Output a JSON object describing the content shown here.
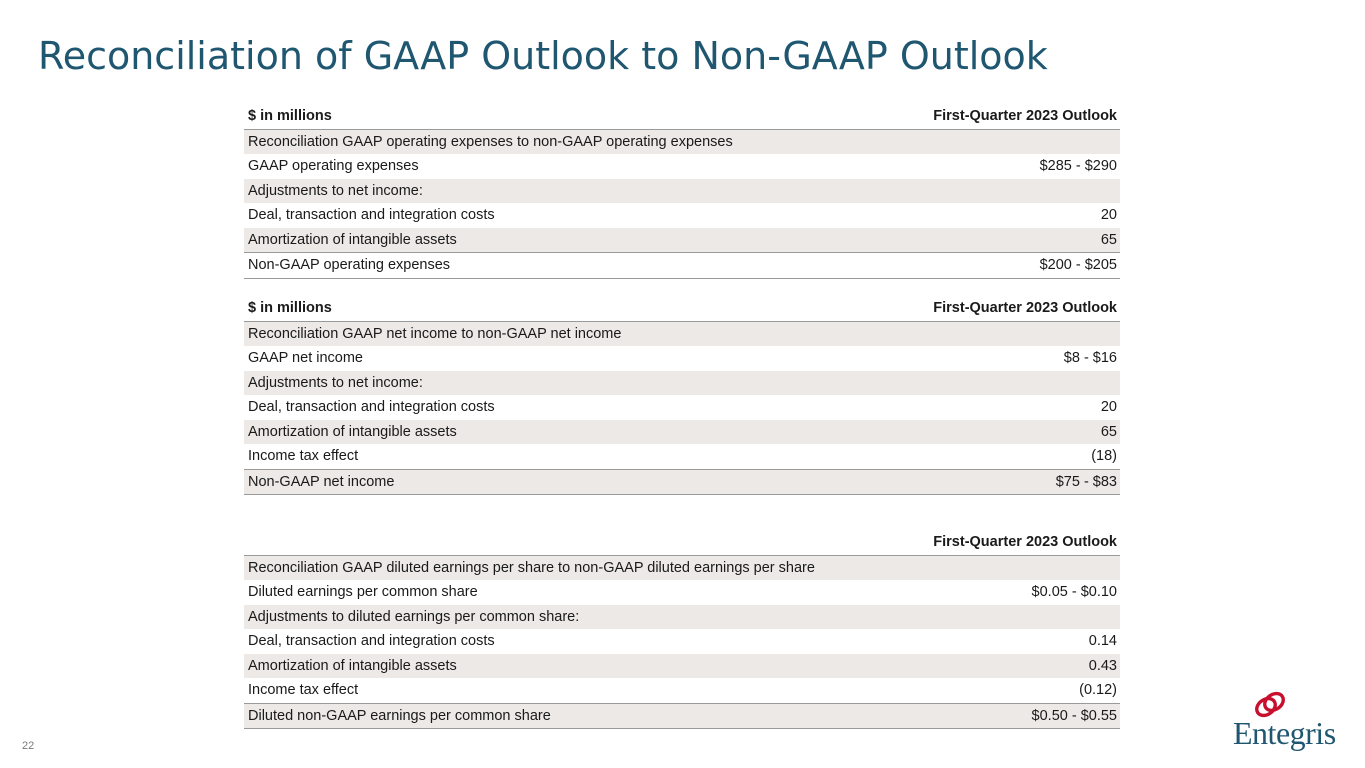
{
  "title": "Reconciliation of GAAP Outlook to Non-GAAP Outlook",
  "page_number": "22",
  "brand": {
    "name": "Entegris",
    "text_color": "#1f5670",
    "mark_color": "#c8102e"
  },
  "tables": {
    "opex": {
      "header_left": "$ in millions",
      "header_right": "First-Quarter 2023 Outlook",
      "rows": [
        {
          "label": "Reconciliation GAAP operating expenses to non-GAAP operating expenses",
          "value": ""
        },
        {
          "label": "GAAP operating expenses",
          "value": "$285 - $290"
        },
        {
          "label": "Adjustments to net income:",
          "value": ""
        },
        {
          "label": "Deal, transaction and integration costs",
          "value": "20"
        },
        {
          "label": "Amortization of intangible assets",
          "value": "65"
        },
        {
          "label": "Non-GAAP operating expenses",
          "value": "$200 - $205"
        }
      ]
    },
    "net_income": {
      "header_left": "$ in millions",
      "header_right": "First-Quarter 2023 Outlook",
      "rows": [
        {
          "label": "Reconciliation GAAP net income to non-GAAP net income",
          "value": ""
        },
        {
          "label": "GAAP net income",
          "value": "$8 - $16"
        },
        {
          "label": "Adjustments to net income:",
          "value": ""
        },
        {
          "label": "Deal, transaction and integration costs",
          "value": "20"
        },
        {
          "label": "Amortization of intangible assets",
          "value": "65"
        },
        {
          "label": "Income tax effect",
          "value": "(18)"
        },
        {
          "label": "Non-GAAP net income",
          "value": "$75 - $83"
        }
      ]
    },
    "eps": {
      "header_left": "",
      "header_right": "First-Quarter 2023 Outlook",
      "rows": [
        {
          "label": "Reconciliation GAAP diluted earnings per share to non-GAAP diluted earnings per share",
          "value": ""
        },
        {
          "label": "Diluted earnings per common share",
          "value": "$0.05 - $0.10"
        },
        {
          "label": "Adjustments to diluted earnings per common share:",
          "value": ""
        },
        {
          "label": "Deal, transaction and integration costs",
          "value": "0.14"
        },
        {
          "label": "Amortization of intangible assets",
          "value": "0.43"
        },
        {
          "label": "Income tax effect",
          "value": "(0.12)"
        },
        {
          "label": "Diluted non-GAAP earnings per common share",
          "value": "$0.50 - $0.55"
        }
      ]
    }
  }
}
